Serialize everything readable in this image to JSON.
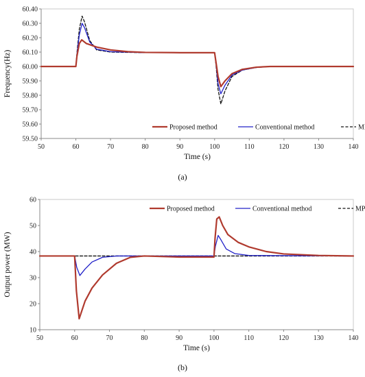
{
  "chart_data": [
    {
      "type": "line",
      "caption": "(a)",
      "xlabel": "Time (s)",
      "ylabel": "Frequency(Hz)",
      "xlim": [
        50,
        140
      ],
      "ylim": [
        59.5,
        60.4
      ],
      "xticks": [
        50,
        60,
        70,
        80,
        90,
        100,
        110,
        120,
        130,
        140
      ],
      "yticks": [
        59.5,
        59.6,
        59.7,
        59.8,
        59.9,
        60.0,
        60.1,
        60.2,
        60.3,
        60.4
      ],
      "ytick_labels": [
        "59.50",
        "59.60",
        "59.70",
        "59.80",
        "59.90",
        "60.00",
        "60.10",
        "60.20",
        "60.30",
        "60.40"
      ],
      "grid": false,
      "legend_position": "bottom-right",
      "series": [
        {
          "name": "Proposed method",
          "color": "#b03a2e",
          "dash": "solid",
          "points": [
            [
              50,
              60.0
            ],
            [
              60,
              60.0
            ],
            [
              60.3,
              60.07
            ],
            [
              61,
              60.16
            ],
            [
              61.7,
              60.185
            ],
            [
              63,
              60.16
            ],
            [
              66,
              60.135
            ],
            [
              70,
              60.115
            ],
            [
              75,
              60.103
            ],
            [
              80,
              60.098
            ],
            [
              90,
              60.096
            ],
            [
              100,
              60.096
            ],
            [
              100.4,
              60.03
            ],
            [
              101,
              59.93
            ],
            [
              101.8,
              59.86
            ],
            [
              103,
              59.9
            ],
            [
              105,
              59.95
            ],
            [
              108,
              59.98
            ],
            [
              112,
              59.995
            ],
            [
              116,
              60.0
            ],
            [
              140,
              60.0
            ]
          ]
        },
        {
          "name": "Conventional method",
          "color": "#2020c8",
          "dash": "solid",
          "points": [
            [
              50,
              60.0
            ],
            [
              60,
              60.0
            ],
            [
              60.3,
              60.08
            ],
            [
              61,
              60.22
            ],
            [
              61.8,
              60.3
            ],
            [
              62.5,
              60.27
            ],
            [
              64,
              60.17
            ],
            [
              66,
              60.12
            ],
            [
              70,
              60.103
            ],
            [
              80,
              60.096
            ],
            [
              100,
              60.096
            ],
            [
              100.4,
              60.02
            ],
            [
              101,
              59.88
            ],
            [
              101.8,
              59.81
            ],
            [
              103,
              59.87
            ],
            [
              105,
              59.94
            ],
            [
              108,
              59.975
            ],
            [
              112,
              59.993
            ],
            [
              116,
              60.0
            ],
            [
              140,
              60.0
            ]
          ]
        },
        {
          "name": "MPPT",
          "color": "#111111",
          "dash": "dashed",
          "points": [
            [
              50,
              60.0
            ],
            [
              60,
              60.0
            ],
            [
              60.3,
              60.09
            ],
            [
              61,
              60.26
            ],
            [
              61.8,
              60.35
            ],
            [
              62.5,
              60.31
            ],
            [
              64,
              60.18
            ],
            [
              66,
              60.115
            ],
            [
              70,
              60.1
            ],
            [
              80,
              60.096
            ],
            [
              100,
              60.096
            ],
            [
              100.4,
              60.01
            ],
            [
              101,
              59.84
            ],
            [
              101.8,
              59.74
            ],
            [
              103,
              59.83
            ],
            [
              105,
              59.93
            ],
            [
              108,
              59.975
            ],
            [
              112,
              59.993
            ],
            [
              116,
              60.0
            ],
            [
              140,
              60.0
            ]
          ]
        }
      ]
    },
    {
      "type": "line",
      "caption": "(b)",
      "xlabel": "Time (s)",
      "ylabel": "Output power (MW)",
      "xlim": [
        50,
        140
      ],
      "ylim": [
        10,
        60
      ],
      "xticks": [
        50,
        60,
        70,
        80,
        90,
        100,
        110,
        120,
        130,
        140
      ],
      "yticks": [
        10,
        20,
        30,
        40,
        50,
        60
      ],
      "ytick_labels": [
        "10",
        "20",
        "30",
        "40",
        "50",
        "60"
      ],
      "grid": false,
      "legend_position": "top-right",
      "series": [
        {
          "name": "Proposed method",
          "color": "#b03a2e",
          "dash": "solid",
          "points": [
            [
              50,
              38.3
            ],
            [
              60,
              38.3
            ],
            [
              60.5,
              25
            ],
            [
              61.3,
              14.2
            ],
            [
              62,
              17
            ],
            [
              63,
              21
            ],
            [
              65,
              26
            ],
            [
              68,
              31
            ],
            [
              72,
              35.5
            ],
            [
              76,
              37.8
            ],
            [
              80,
              38.3
            ],
            [
              90,
              37.9
            ],
            [
              100,
              37.9
            ],
            [
              100.3,
              45
            ],
            [
              100.8,
              52.5
            ],
            [
              101.5,
              53.3
            ],
            [
              102.5,
              50
            ],
            [
              104,
              46.5
            ],
            [
              107,
              43.5
            ],
            [
              110,
              41.8
            ],
            [
              115,
              40
            ],
            [
              120,
              39.1
            ],
            [
              130,
              38.5
            ],
            [
              140,
              38.3
            ]
          ]
        },
        {
          "name": "Conventional method",
          "color": "#2020c8",
          "dash": "solid",
          "points": [
            [
              50,
              38.3
            ],
            [
              60,
              38.3
            ],
            [
              60.6,
              34
            ],
            [
              61.5,
              30.8
            ],
            [
              63,
              33.3
            ],
            [
              65,
              36
            ],
            [
              68,
              37.8
            ],
            [
              72,
              38.3
            ],
            [
              100,
              38.3
            ],
            [
              100.4,
              42
            ],
            [
              101.2,
              46.2
            ],
            [
              102,
              44.5
            ],
            [
              103.5,
              41
            ],
            [
              106,
              39.2
            ],
            [
              110,
              38.5
            ],
            [
              140,
              38.3
            ]
          ]
        },
        {
          "name": "MPPT",
          "color": "#111111",
          "dash": "dashed",
          "points": [
            [
              50,
              38.3
            ],
            [
              140,
              38.3
            ]
          ]
        }
      ]
    }
  ]
}
